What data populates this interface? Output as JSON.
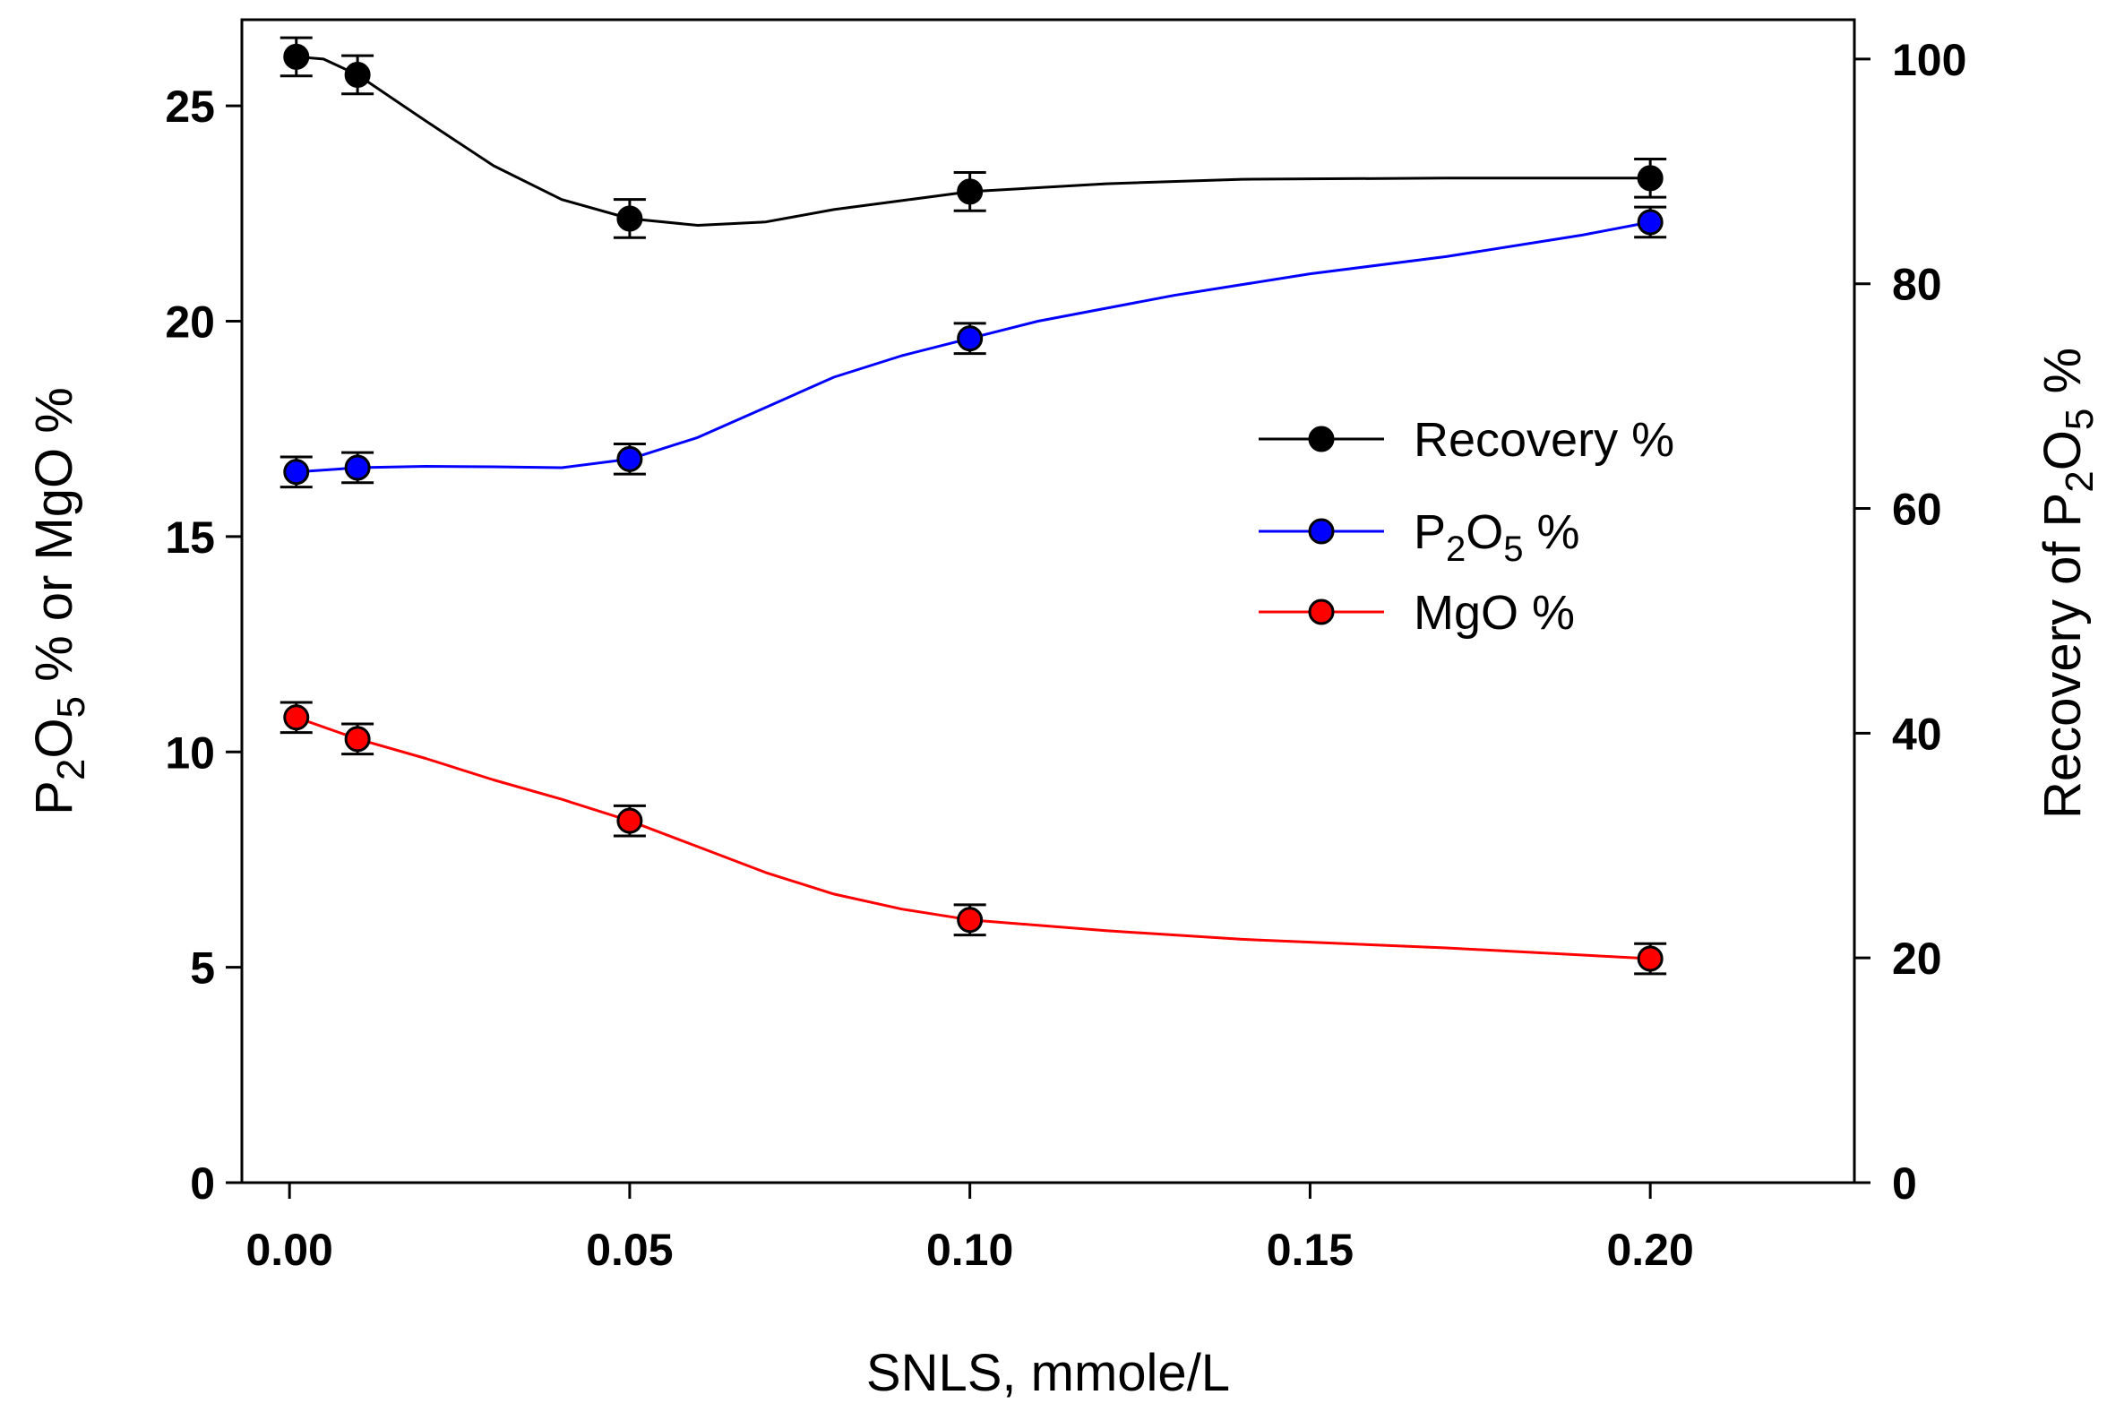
{
  "chart_data": {
    "type": "line",
    "title": "",
    "xlabel": "SNLS, mmole/L",
    "ylabel_left": {
      "parts": [
        {
          "text": "P",
          "style": "normal"
        },
        {
          "text": "2",
          "style": "sub"
        },
        {
          "text": "O",
          "style": "normal"
        },
        {
          "text": "5",
          "style": "sub"
        },
        {
          "text": " % or MgO %",
          "style": "normal"
        }
      ]
    },
    "ylabel_right": {
      "parts": [
        {
          "text": "Recovery of P",
          "style": "normal"
        },
        {
          "text": "2",
          "style": "sub"
        },
        {
          "text": "O",
          "style": "normal"
        },
        {
          "text": "5",
          "style": "sub"
        },
        {
          "text": " %",
          "style": "normal"
        }
      ]
    },
    "xlim": [
      -0.007,
      0.23
    ],
    "ylim_left": [
      0,
      27
    ],
    "ylim_right": [
      0,
      103.5
    ],
    "x_ticks": [
      0.0,
      0.05,
      0.1,
      0.15,
      0.2
    ],
    "x_tick_labels": [
      "0.00",
      "0.05",
      "0.10",
      "0.15",
      "0.20"
    ],
    "y_left_ticks": [
      0,
      5,
      10,
      15,
      20,
      25
    ],
    "y_left_tick_labels": [
      "0",
      "5",
      "10",
      "15",
      "20",
      "25"
    ],
    "y_right_ticks": [
      0,
      20,
      40,
      60,
      80,
      100
    ],
    "y_right_tick_labels": [
      "0",
      "20",
      "40",
      "60",
      "80",
      "100"
    ],
    "grid": false,
    "legend_position": "right-middle",
    "series": [
      {
        "name": "Recovery %",
        "legend_parts": [
          {
            "text": "Recovery %",
            "style": "normal"
          }
        ],
        "axis": "right",
        "color": "#000000",
        "x": [
          0.001,
          0.01,
          0.05,
          0.1,
          0.2
        ],
        "y": [
          100.2,
          98.6,
          85.8,
          88.2,
          89.4
        ],
        "err": [
          1.7,
          1.7,
          1.7,
          1.7,
          1.7
        ],
        "curve": [
          [
            0.001,
            100.2
          ],
          [
            0.005,
            100.0
          ],
          [
            0.01,
            98.6
          ],
          [
            0.02,
            94.5
          ],
          [
            0.03,
            90.5
          ],
          [
            0.04,
            87.5
          ],
          [
            0.05,
            85.8
          ],
          [
            0.06,
            85.2
          ],
          [
            0.07,
            85.5
          ],
          [
            0.08,
            86.6
          ],
          [
            0.09,
            87.4
          ],
          [
            0.1,
            88.2
          ],
          [
            0.12,
            88.9
          ],
          [
            0.14,
            89.3
          ],
          [
            0.17,
            89.4
          ],
          [
            0.2,
            89.4
          ]
        ]
      },
      {
        "name": "P2O5 %",
        "legend_parts": [
          {
            "text": "P",
            "style": "normal"
          },
          {
            "text": "2",
            "style": "sub"
          },
          {
            "text": "O",
            "style": "normal"
          },
          {
            "text": "5",
            "style": "sub"
          },
          {
            "text": " %",
            "style": "normal"
          }
        ],
        "axis": "left",
        "color": "#0000ff",
        "x": [
          0.001,
          0.01,
          0.05,
          0.1,
          0.2
        ],
        "y": [
          16.5,
          16.6,
          16.8,
          19.6,
          22.3
        ],
        "err": [
          0.35,
          0.35,
          0.35,
          0.35,
          0.35
        ],
        "curve": [
          [
            0.001,
            16.5
          ],
          [
            0.01,
            16.6
          ],
          [
            0.02,
            16.63
          ],
          [
            0.03,
            16.62
          ],
          [
            0.04,
            16.6
          ],
          [
            0.05,
            16.8
          ],
          [
            0.06,
            17.3
          ],
          [
            0.07,
            18.0
          ],
          [
            0.08,
            18.7
          ],
          [
            0.09,
            19.2
          ],
          [
            0.1,
            19.6
          ],
          [
            0.11,
            20.0
          ],
          [
            0.13,
            20.6
          ],
          [
            0.15,
            21.1
          ],
          [
            0.17,
            21.5
          ],
          [
            0.19,
            22.0
          ],
          [
            0.2,
            22.3
          ]
        ]
      },
      {
        "name": "MgO %",
        "legend_parts": [
          {
            "text": "MgO %",
            "style": "normal"
          }
        ],
        "axis": "left",
        "color": "#ff0000",
        "x": [
          0.001,
          0.01,
          0.05,
          0.1,
          0.2
        ],
        "y": [
          10.8,
          10.3,
          8.4,
          6.1,
          5.2
        ],
        "err": [
          0.35,
          0.35,
          0.35,
          0.35,
          0.35
        ],
        "curve": [
          [
            0.001,
            10.8
          ],
          [
            0.01,
            10.3
          ],
          [
            0.02,
            9.85
          ],
          [
            0.03,
            9.35
          ],
          [
            0.04,
            8.9
          ],
          [
            0.05,
            8.4
          ],
          [
            0.06,
            7.8
          ],
          [
            0.07,
            7.2
          ],
          [
            0.08,
            6.7
          ],
          [
            0.09,
            6.35
          ],
          [
            0.1,
            6.1
          ],
          [
            0.12,
            5.85
          ],
          [
            0.14,
            5.65
          ],
          [
            0.17,
            5.45
          ],
          [
            0.2,
            5.2
          ]
        ]
      }
    ]
  }
}
